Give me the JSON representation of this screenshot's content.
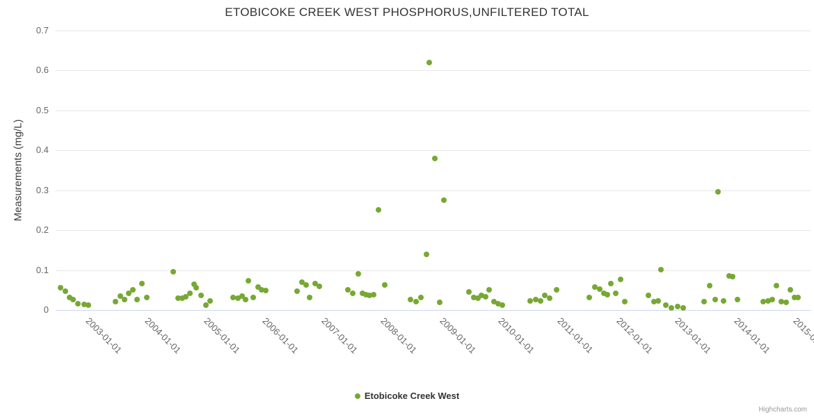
{
  "title": "ETOBICOKE CREEK WEST PHOSPHORUS,UNFILTERED TOTAL",
  "credits": "Highcharts.com",
  "legend": {
    "label": "Etobicoke Creek West"
  },
  "colors": {
    "series": "#77A833",
    "grid": "#e6e6e6",
    "axis_line": "#ccd6eb",
    "tick_label": "#666666",
    "title": "#333333"
  },
  "chart_data": {
    "type": "scatter",
    "title": "ETOBICOKE CREEK WEST PHOSPHORUS,UNFILTERED TOTAL",
    "xlabel": "",
    "ylabel": "Measurements (mg/L)",
    "ylim": [
      0,
      0.7
    ],
    "yticks": [
      0,
      0.1,
      0.2,
      0.3,
      0.4,
      0.5,
      0.6,
      0.7
    ],
    "ytick_labels": [
      "0",
      "0.1",
      "0.2",
      "0.3",
      "0.4",
      "0.5",
      "0.6",
      "0.7"
    ],
    "xlim": [
      2002.37,
      2015.18
    ],
    "xticks": [
      2003,
      2004,
      2005,
      2006,
      2007,
      2008,
      2009,
      2010,
      2011,
      2012,
      2013,
      2014,
      2015
    ],
    "xtick_labels": [
      "2003-01-01",
      "2004-01-01",
      "2005-01-01",
      "2006-01-01",
      "2007-01-01",
      "2008-01-01",
      "2009-01-01",
      "2010-01-01",
      "2011-01-01",
      "2012-01-01",
      "2013-01-01",
      "2014-01-01",
      "2015-01-01"
    ],
    "grid": "horizontal",
    "legend_position": "bottom-center",
    "series": [
      {
        "name": "Etobicoke Creek West",
        "color": "#77A833",
        "points": [
          [
            2002.45,
            0.055
          ],
          [
            2002.53,
            0.047
          ],
          [
            2002.61,
            0.031
          ],
          [
            2002.67,
            0.026
          ],
          [
            2002.75,
            0.016
          ],
          [
            2002.85,
            0.014
          ],
          [
            2002.93,
            0.012
          ],
          [
            2003.38,
            0.021
          ],
          [
            2003.47,
            0.035
          ],
          [
            2003.54,
            0.026
          ],
          [
            2003.61,
            0.041
          ],
          [
            2003.68,
            0.05
          ],
          [
            2003.75,
            0.026
          ],
          [
            2003.83,
            0.066
          ],
          [
            2003.92,
            0.031
          ],
          [
            2004.36,
            0.096
          ],
          [
            2004.45,
            0.03
          ],
          [
            2004.52,
            0.029
          ],
          [
            2004.58,
            0.033
          ],
          [
            2004.65,
            0.041
          ],
          [
            2004.72,
            0.064
          ],
          [
            2004.76,
            0.056
          ],
          [
            2004.84,
            0.036
          ],
          [
            2004.92,
            0.013
          ],
          [
            2004.99,
            0.023
          ],
          [
            2005.38,
            0.031
          ],
          [
            2005.46,
            0.029
          ],
          [
            2005.53,
            0.035
          ],
          [
            2005.59,
            0.026
          ],
          [
            2005.64,
            0.073
          ],
          [
            2005.72,
            0.031
          ],
          [
            2005.8,
            0.058
          ],
          [
            2005.86,
            0.051
          ],
          [
            2005.93,
            0.049
          ],
          [
            2006.47,
            0.047
          ],
          [
            2006.55,
            0.07
          ],
          [
            2006.62,
            0.063
          ],
          [
            2006.68,
            0.031
          ],
          [
            2006.77,
            0.066
          ],
          [
            2006.84,
            0.06
          ],
          [
            2007.33,
            0.05
          ],
          [
            2007.41,
            0.041
          ],
          [
            2007.5,
            0.091
          ],
          [
            2007.58,
            0.041
          ],
          [
            2007.64,
            0.038
          ],
          [
            2007.7,
            0.036
          ],
          [
            2007.76,
            0.038
          ],
          [
            2007.85,
            0.25
          ],
          [
            2007.96,
            0.062
          ],
          [
            2008.39,
            0.026
          ],
          [
            2008.48,
            0.021
          ],
          [
            2008.57,
            0.031
          ],
          [
            2008.66,
            0.14
          ],
          [
            2008.71,
            0.62
          ],
          [
            2008.8,
            0.38
          ],
          [
            2008.89,
            0.019
          ],
          [
            2008.96,
            0.275
          ],
          [
            2009.38,
            0.046
          ],
          [
            2009.47,
            0.031
          ],
          [
            2009.54,
            0.029
          ],
          [
            2009.6,
            0.036
          ],
          [
            2009.67,
            0.033
          ],
          [
            2009.73,
            0.05
          ],
          [
            2009.81,
            0.021
          ],
          [
            2009.88,
            0.016
          ],
          [
            2009.95,
            0.013
          ],
          [
            2010.42,
            0.023
          ],
          [
            2010.52,
            0.026
          ],
          [
            2010.6,
            0.023
          ],
          [
            2010.67,
            0.036
          ],
          [
            2010.75,
            0.029
          ],
          [
            2010.87,
            0.051
          ],
          [
            2011.42,
            0.031
          ],
          [
            2011.52,
            0.058
          ],
          [
            2011.6,
            0.053
          ],
          [
            2011.67,
            0.041
          ],
          [
            2011.73,
            0.039
          ],
          [
            2011.79,
            0.066
          ],
          [
            2011.87,
            0.041
          ],
          [
            2011.96,
            0.076
          ],
          [
            2012.03,
            0.021
          ],
          [
            2012.43,
            0.036
          ],
          [
            2012.52,
            0.021
          ],
          [
            2012.6,
            0.023
          ],
          [
            2012.64,
            0.101
          ],
          [
            2012.73,
            0.013
          ],
          [
            2012.82,
            0.006
          ],
          [
            2012.93,
            0.009
          ],
          [
            2013.02,
            0.006
          ],
          [
            2013.37,
            0.021
          ],
          [
            2013.47,
            0.061
          ],
          [
            2013.56,
            0.026
          ],
          [
            2013.61,
            0.296
          ],
          [
            2013.7,
            0.023
          ],
          [
            2013.8,
            0.086
          ],
          [
            2013.86,
            0.083
          ],
          [
            2013.94,
            0.026
          ],
          [
            2014.38,
            0.021
          ],
          [
            2014.46,
            0.023
          ],
          [
            2014.53,
            0.026
          ],
          [
            2014.6,
            0.061
          ],
          [
            2014.69,
            0.021
          ],
          [
            2014.77,
            0.019
          ],
          [
            2014.84,
            0.051
          ],
          [
            2014.91,
            0.031
          ],
          [
            2014.97,
            0.031
          ]
        ]
      }
    ]
  }
}
